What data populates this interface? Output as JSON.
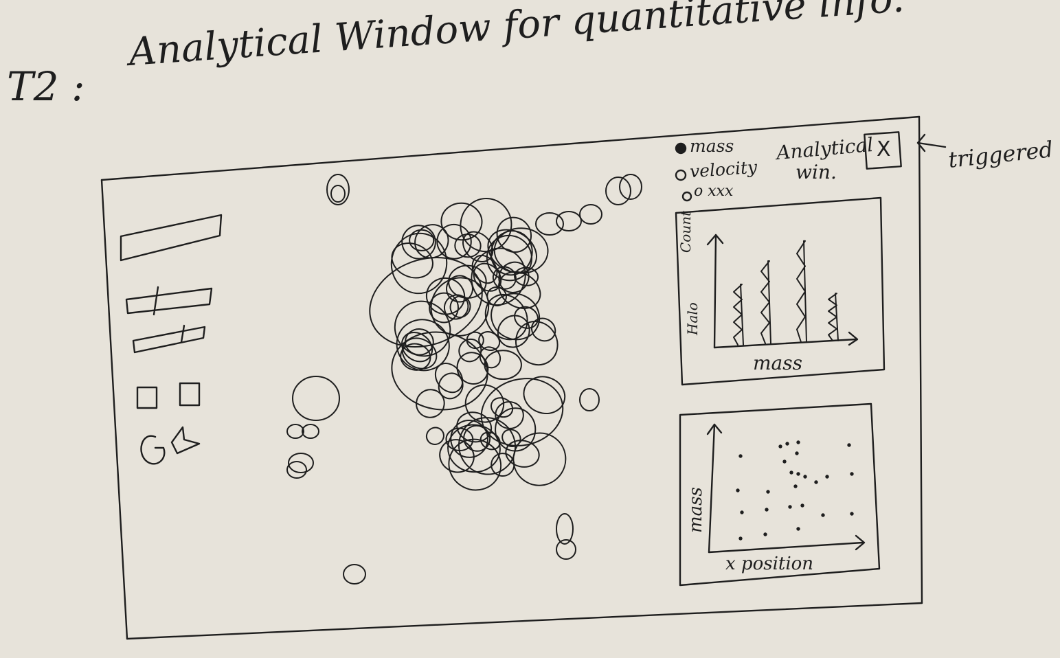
{
  "heading": {
    "task_label": "T2 :",
    "title": "Analytical Window for quantitative info."
  },
  "annotation": {
    "arrow_glyph": "←",
    "text": "triggered"
  },
  "analytical_window": {
    "title_line1": "Analytical",
    "title_line2": "win.",
    "close_label": "X",
    "legend": {
      "items": [
        "mass",
        "velocity"
      ],
      "extra_row": "o xxx"
    }
  },
  "histogram": {
    "ylabel_count": "Count",
    "ylabel_halo": "Halo",
    "xlabel": "mass",
    "bars": [
      {
        "label": "",
        "value": 0.55
      },
      {
        "label": "",
        "value": 0.75
      },
      {
        "label": "",
        "value": 0.92
      },
      {
        "label": "",
        "value": 0.43
      }
    ]
  },
  "scatter": {
    "ylabel": "mass",
    "xlabel": "x position"
  },
  "sidebar": {
    "controls": [
      "slider",
      "slider",
      "slider",
      "checkbox-pair",
      "refresh-share-icons"
    ]
  }
}
